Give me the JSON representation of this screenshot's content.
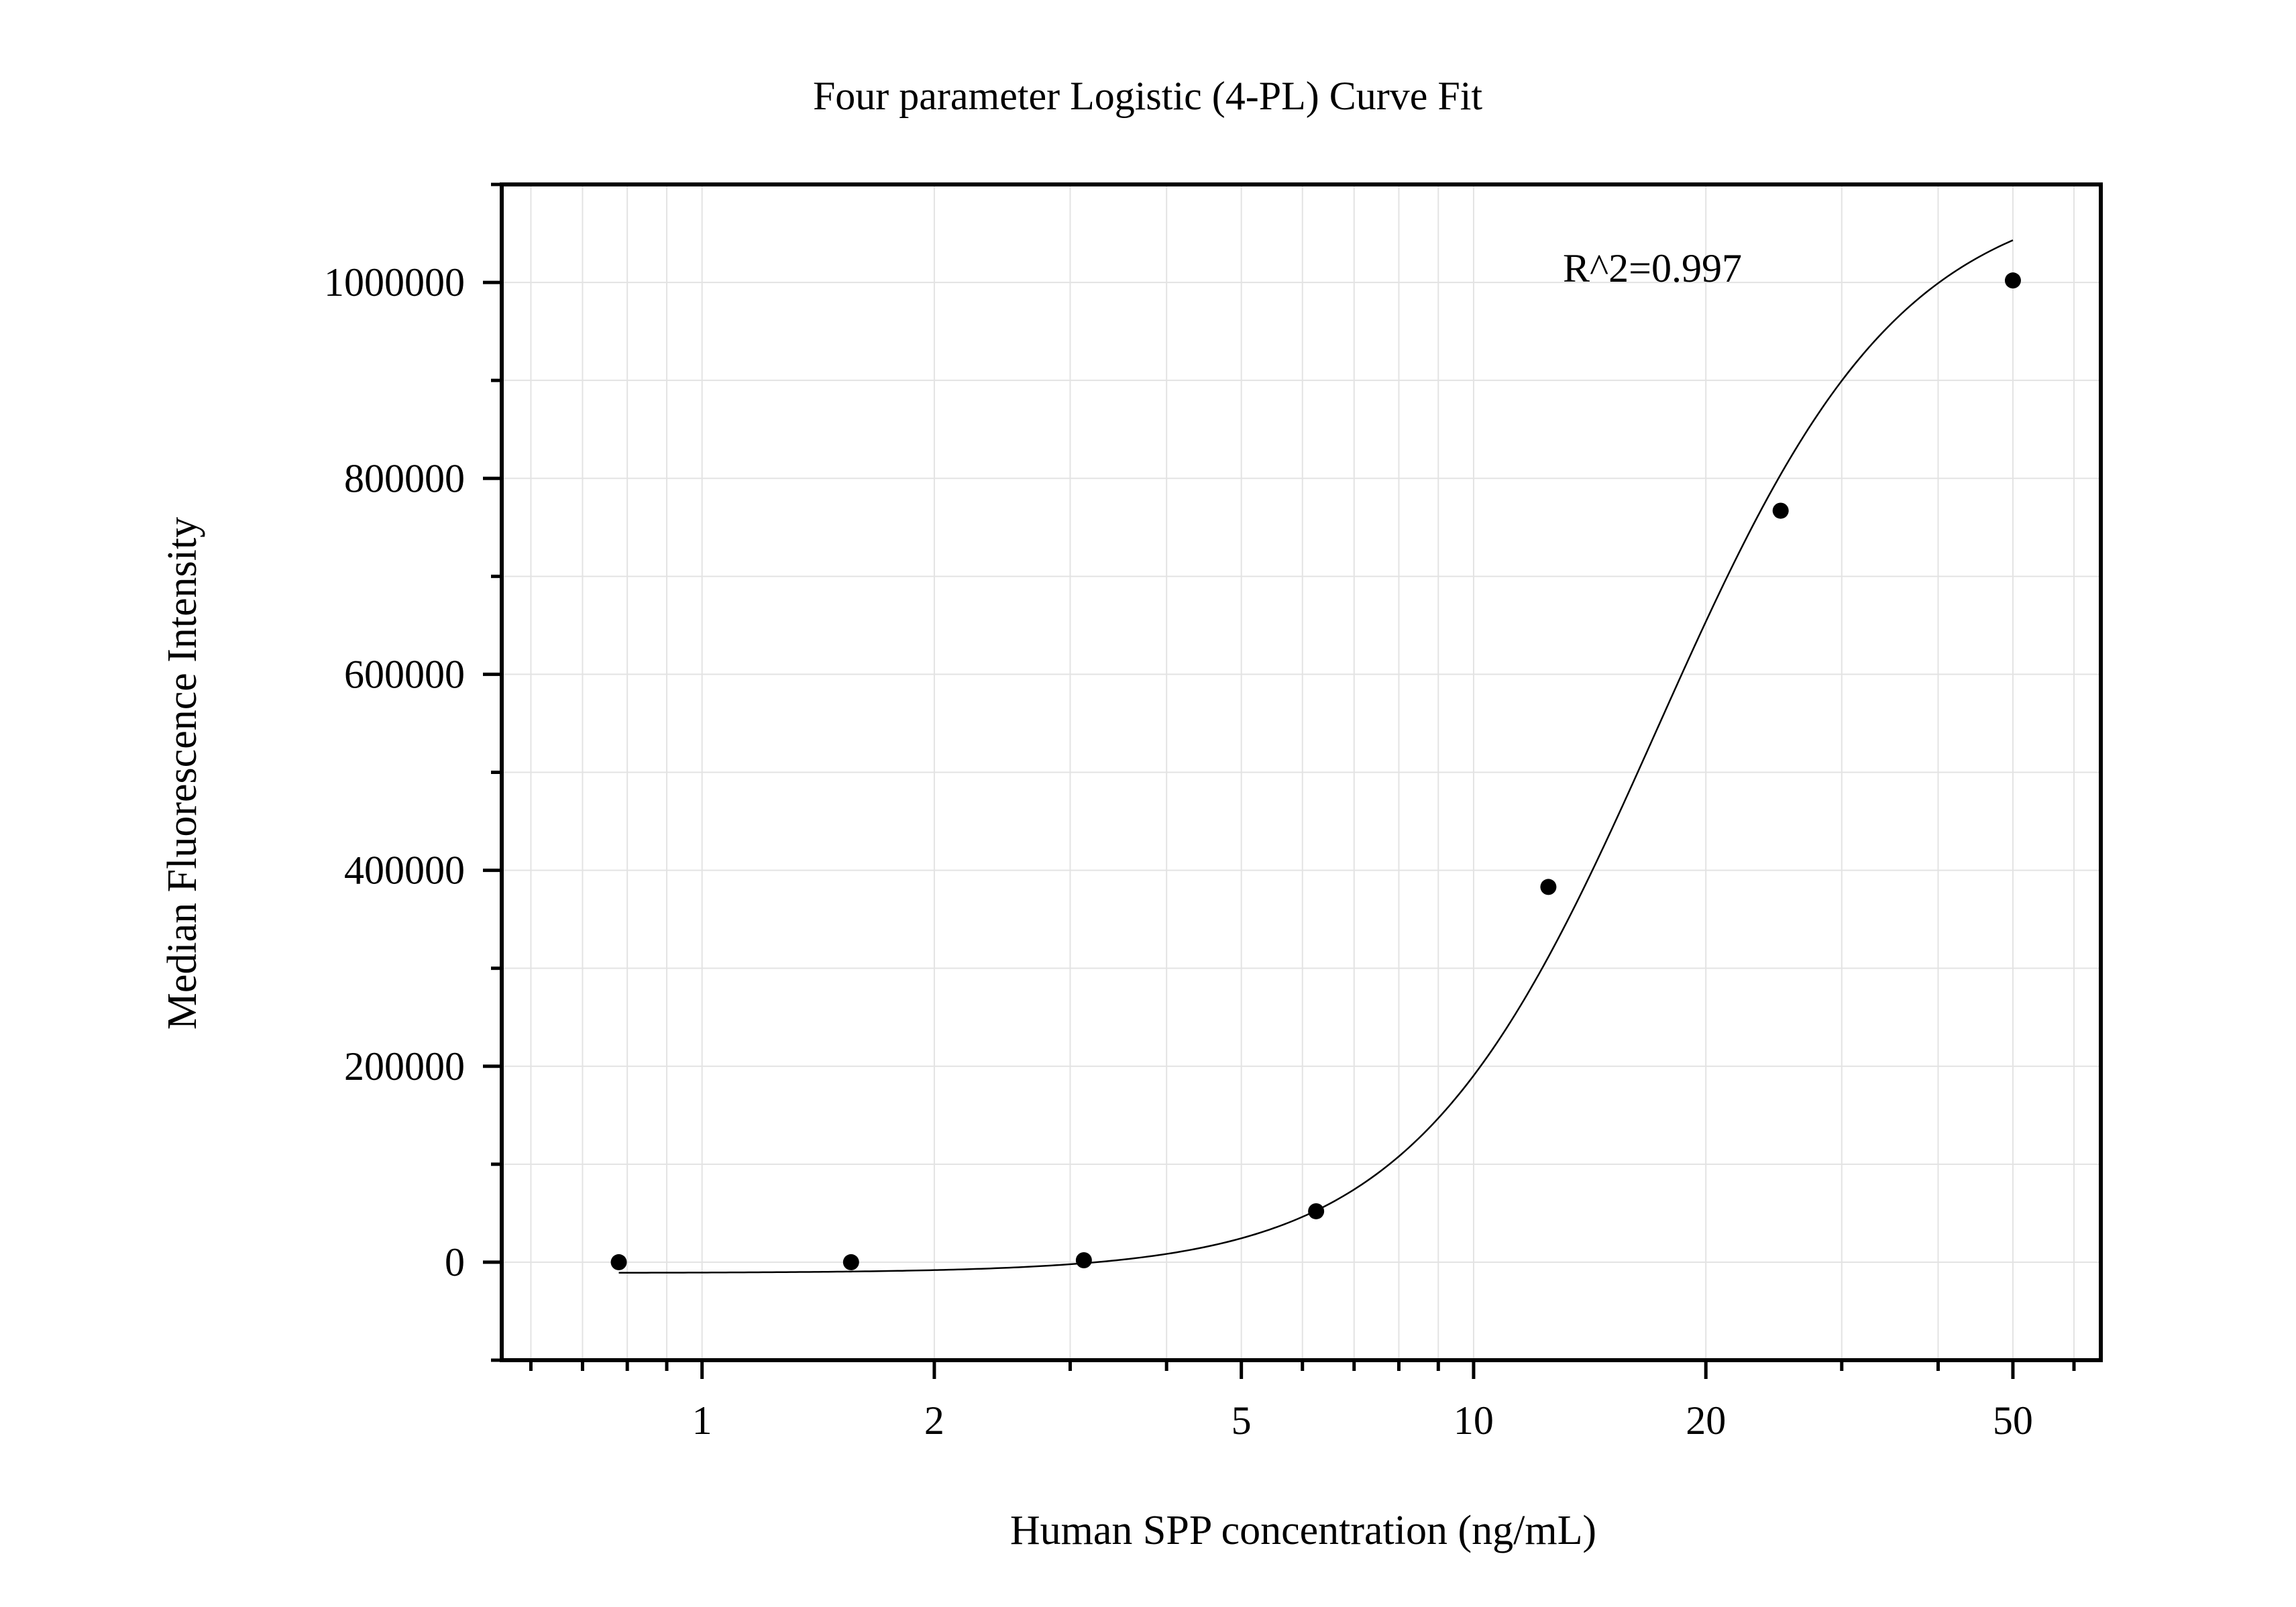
{
  "chart_data": {
    "type": "scatter",
    "title": "Four parameter Logistic (4-PL) Curve Fit",
    "xlabel": "Human SPP concentration (ng/mL)",
    "ylabel": "Median Fluorescence Intensity",
    "x_scale": "log",
    "xlim": [
      0.55,
      65
    ],
    "ylim": [
      -100000,
      1100000
    ],
    "x_ticks": [
      {
        "value": 1,
        "label": "1"
      },
      {
        "value": 2,
        "label": "2"
      },
      {
        "value": 5,
        "label": "5"
      },
      {
        "value": 10,
        "label": "10"
      },
      {
        "value": 20,
        "label": "20"
      },
      {
        "value": 50,
        "label": "50"
      }
    ],
    "y_ticks": [
      {
        "value": 0,
        "label": "0"
      },
      {
        "value": 200000,
        "label": "200000"
      },
      {
        "value": 400000,
        "label": "400000"
      },
      {
        "value": 600000,
        "label": "600000"
      },
      {
        "value": 800000,
        "label": "800000"
      },
      {
        "value": 1000000,
        "label": "1000000"
      }
    ],
    "y_minor_ticks": [
      -100000,
      100000,
      300000,
      500000,
      700000,
      900000,
      1100000
    ],
    "grid": true,
    "points": [
      {
        "x": 0.78,
        "y": 0
      },
      {
        "x": 1.56,
        "y": 0
      },
      {
        "x": 3.125,
        "y": 2000
      },
      {
        "x": 6.25,
        "y": 52000
      },
      {
        "x": 12.5,
        "y": 383000
      },
      {
        "x": 25,
        "y": 767000
      },
      {
        "x": 50,
        "y": 1002000
      }
    ],
    "fit_curve": {
      "model": "4-PL",
      "bottom": -11000,
      "top": 1100000,
      "ec50": 17.3,
      "hill": 2.75,
      "x_range": [
        0.78,
        50
      ]
    },
    "annotation": "R^2=0.997",
    "annotation_position": "top-right",
    "colors": {
      "points": "#000000",
      "curve": "#000000",
      "grid": "#e3e3e3",
      "axes": "#000000"
    }
  }
}
